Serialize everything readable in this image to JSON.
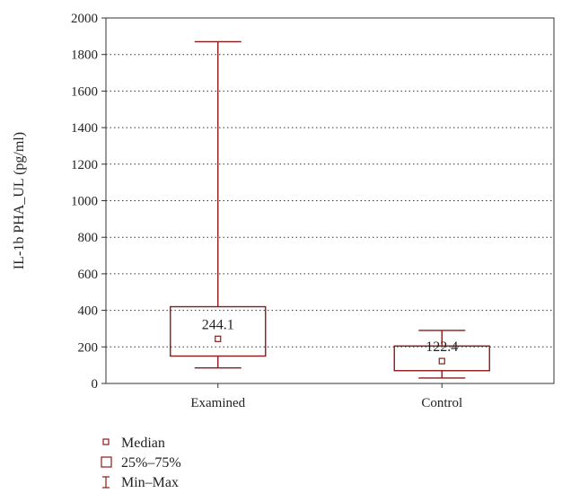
{
  "chart_data": {
    "type": "box",
    "title": "",
    "xlabel": "",
    "ylabel": "IL-1b PHA_UL (pg/ml)",
    "ylim": [
      0,
      2000
    ],
    "yticks": [
      0,
      200,
      400,
      600,
      800,
      1000,
      1200,
      1400,
      1600,
      1800,
      2000
    ],
    "grid": "horizontal-dotted",
    "categories": [
      "Examined",
      "Control"
    ],
    "boxes": [
      {
        "category": "Examined",
        "min": 85,
        "q1": 150,
        "median": 244.1,
        "q3": 420,
        "max": 1870,
        "median_label": "244.1"
      },
      {
        "category": "Control",
        "min": 30,
        "q1": 70,
        "median": 122.4,
        "q3": 205,
        "max": 290,
        "median_label": "122.4"
      }
    ],
    "legend": {
      "placement": "bottom-left",
      "entries": [
        {
          "symbol": "median-square-icon",
          "label": "Median"
        },
        {
          "symbol": "box-icon",
          "label": "25%–75%"
        },
        {
          "symbol": "whisker-icon",
          "label": "Min–Max"
        }
      ]
    },
    "colors": {
      "box": "#8b1a1a",
      "axis": "#333333",
      "grid": "#333333"
    }
  }
}
